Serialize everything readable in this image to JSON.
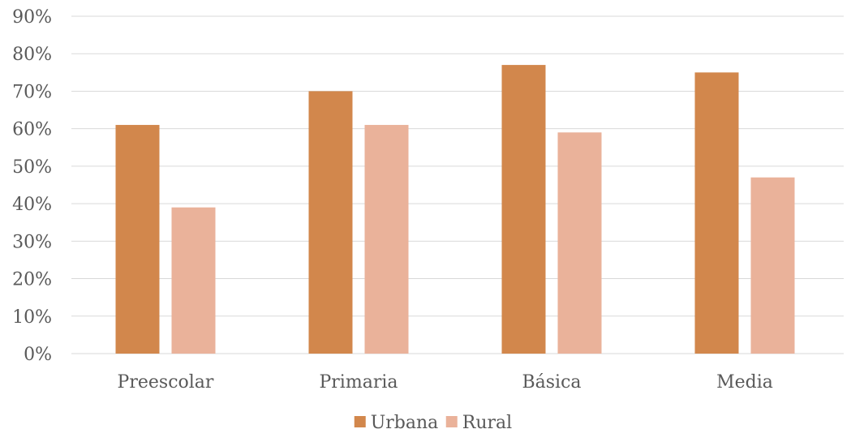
{
  "chart_data": {
    "type": "bar",
    "categories": [
      "Preescolar",
      "Primaria",
      "Básica",
      "Media"
    ],
    "series": [
      {
        "name": "Urbana",
        "values": [
          61,
          70,
          77,
          75
        ],
        "color": "#D2874C"
      },
      {
        "name": "Rural",
        "values": [
          39,
          61,
          59,
          47
        ],
        "color": "#EAB29A"
      }
    ],
    "y_ticks": [
      "0%",
      "10%",
      "20%",
      "30%",
      "40%",
      "50%",
      "60%",
      "70%",
      "80%",
      "90%"
    ],
    "ylim": [
      0,
      90
    ],
    "grid": true,
    "legend_position": "bottom",
    "title": "",
    "xlabel": "",
    "ylabel": ""
  }
}
